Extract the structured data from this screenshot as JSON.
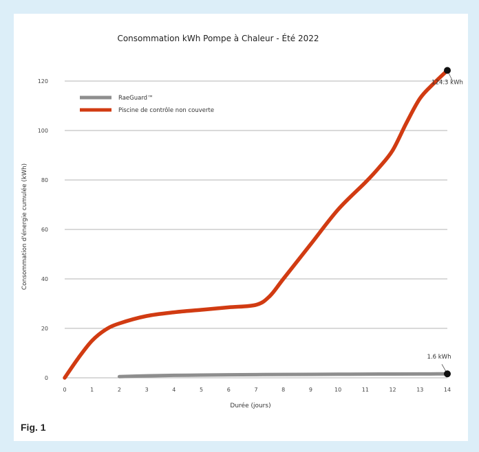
{
  "figure": {
    "label": "Fig. 1"
  },
  "colors": {
    "page_background": "#dceef8",
    "uncovered": "#d13b12",
    "raeguard": "#8e8e8e",
    "grid": "#9a9a9a",
    "marker": "#111111"
  },
  "chart_data": {
    "type": "line",
    "title": "Consommation kWh Pompe à Chaleur - Été 2022",
    "xlabel": "Durée (jours)",
    "ylabel": "Consommation d'énergie cumulée (kWh)",
    "xlim": [
      0,
      14
    ],
    "ylim": [
      0,
      120
    ],
    "x_ticks": [
      "0",
      "1",
      "2",
      "3",
      "4",
      "5",
      "6",
      "7",
      "8",
      "9",
      "10",
      "11",
      "12",
      "13",
      "14"
    ],
    "y_ticks": [
      "0",
      "20",
      "40",
      "60",
      "80",
      "100",
      "120"
    ],
    "grid": "horizontal",
    "legend_position": "top-left",
    "series": [
      {
        "name": "RaeGuard™",
        "color_key": "raeguard",
        "x": [
          2,
          3,
          4,
          5,
          6,
          7,
          8,
          9,
          10,
          11,
          12,
          13,
          14
        ],
        "y": [
          0.5,
          0.8,
          1.0,
          1.1,
          1.2,
          1.3,
          1.35,
          1.4,
          1.45,
          1.5,
          1.52,
          1.55,
          1.6
        ]
      },
      {
        "name": "Piscine de contrôle non couverte",
        "color_key": "uncovered",
        "x": [
          0,
          0.5,
          1,
          1.5,
          2,
          3,
          4,
          5,
          6,
          7,
          7.5,
          8,
          9,
          10,
          11,
          11.5,
          12,
          12.5,
          13,
          13.5,
          14
        ],
        "y": [
          0,
          8,
          15,
          19.5,
          22,
          25,
          26.5,
          27.5,
          28.5,
          29.5,
          33,
          40,
          54,
          68,
          79,
          85,
          92,
          103,
          113,
          119,
          124.3
        ]
      }
    ],
    "annotations": [
      {
        "text": "124.3 kWh",
        "x": 14,
        "y": 124.3
      },
      {
        "text": "1.6 kWh",
        "x": 14,
        "y": 1.6
      }
    ]
  }
}
